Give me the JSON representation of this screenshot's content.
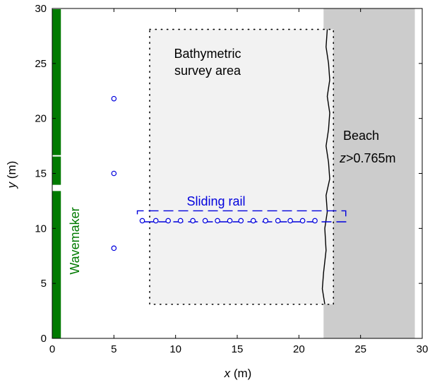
{
  "colors": {
    "wavemaker": "#007a00",
    "gauges": "#0000dd",
    "beach": "#cccccc",
    "survey": "#f2f2f2",
    "shoreline": "#000000"
  },
  "axes": {
    "xlabel_var": "x",
    "xlabel_unit": " (m)",
    "ylabel_var": "y",
    "ylabel_unit": " (m)",
    "xlim": [
      0,
      30
    ],
    "ylim": [
      0,
      30
    ],
    "xticks": [
      0,
      5,
      10,
      15,
      20,
      25,
      30
    ],
    "yticks": [
      0,
      5,
      10,
      15,
      20,
      25,
      30
    ]
  },
  "labels": {
    "survey_line1": "Bathymetric",
    "survey_line2": "survey area",
    "beach": "Beach",
    "beach_cond_var": "z",
    "beach_cond_value": ">0.765m",
    "rail": "Sliding rail",
    "wavemaker": "Wavemaker"
  },
  "chart_data": {
    "type": "scatter",
    "title": "",
    "xlabel": "x (m)",
    "ylabel": "y (m)",
    "xlim": [
      0,
      30
    ],
    "ylim": [
      0,
      30
    ],
    "wavemaker_segments_y": [
      [
        0,
        13.4
      ],
      [
        13.9,
        16.6
      ],
      [
        16.6,
        30
      ]
    ],
    "wavemaker_x": [
      0,
      0.7
    ],
    "survey_area": {
      "x": [
        7.9,
        22.8
      ],
      "y": [
        3.1,
        28.1
      ]
    },
    "beach_region": {
      "x": [
        22.0,
        29.4
      ],
      "y": [
        0,
        30
      ]
    },
    "sliding_rail": {
      "x": [
        6.9,
        23.8
      ],
      "y": [
        10.6,
        11.6
      ]
    },
    "offshore_gauges": {
      "x": [
        5,
        5,
        5
      ],
      "y": [
        8.2,
        15.0,
        21.8
      ]
    },
    "rail_gauges": {
      "x": [
        7.3,
        8.4,
        9.4,
        10.4,
        11.4,
        12.4,
        13.4,
        14.4,
        15.3,
        16.3,
        17.3,
        18.3,
        19.3,
        20.3,
        21.3
      ],
      "y": [
        10.7,
        10.7,
        10.7,
        10.7,
        10.7,
        10.7,
        10.7,
        10.7,
        10.7,
        10.7,
        10.7,
        10.7,
        10.7,
        10.7,
        10.7
      ]
    },
    "shoreline": {
      "x": [
        22.3,
        22.2,
        22.4,
        22.5,
        22.3,
        22.5,
        22.4,
        22.2,
        22.4,
        22.5,
        22.2,
        22.3,
        22.1,
        22.2,
        22.0,
        21.9,
        22.1
      ],
      "y": [
        28.1,
        26.5,
        25.0,
        23.5,
        22.0,
        20.5,
        19.0,
        17.5,
        16.0,
        14.5,
        13.0,
        11.5,
        10.0,
        8.0,
        6.0,
        4.5,
        3.1
      ]
    }
  }
}
